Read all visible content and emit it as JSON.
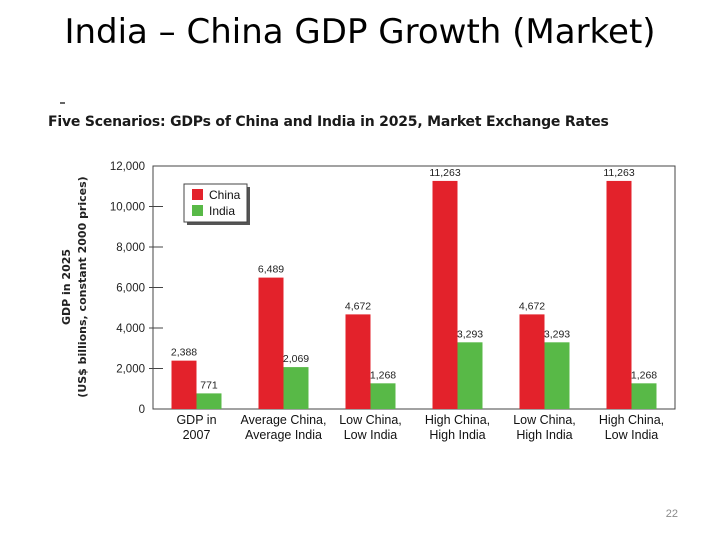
{
  "slide": {
    "title": "India – China GDP Growth (Market)",
    "page_number": "22"
  },
  "chart_data": {
    "type": "bar",
    "title": "Five Scenarios: GDPs of China and India in 2025, Market Exchange Rates",
    "ylabel_line1": "GDP in 2025",
    "ylabel_line2": "(US$ billions, constant 2000 prices)",
    "ylim": [
      0,
      12000
    ],
    "yticks": [
      0,
      2000,
      4000,
      6000,
      8000,
      10000,
      12000
    ],
    "ytick_labels": [
      "0",
      "2,000",
      "4,000",
      "6,000",
      "8,000",
      "10,000",
      "12,000"
    ],
    "categories": [
      [
        "GDP in",
        "2007"
      ],
      [
        "Average China,",
        "Average India"
      ],
      [
        "Low China,",
        "Low India"
      ],
      [
        "High China,",
        "High India"
      ],
      [
        "Low China,",
        "High India"
      ],
      [
        "High China,",
        "Low India"
      ]
    ],
    "series": [
      {
        "name": "China",
        "color": "#e3222b",
        "values": [
          2388,
          6489,
          4672,
          11263,
          4672,
          11263
        ],
        "labels": [
          "2,388",
          "6,489",
          "4,672",
          "11,263",
          "4,672",
          "11,263"
        ]
      },
      {
        "name": "India",
        "color": "#58b947",
        "values": [
          771,
          2069,
          1268,
          3293,
          3293,
          1268
        ],
        "labels": [
          "771",
          "2,069",
          "1,268",
          "3,293",
          "3,293",
          "1,268"
        ]
      }
    ],
    "legend_position": "top-left"
  }
}
